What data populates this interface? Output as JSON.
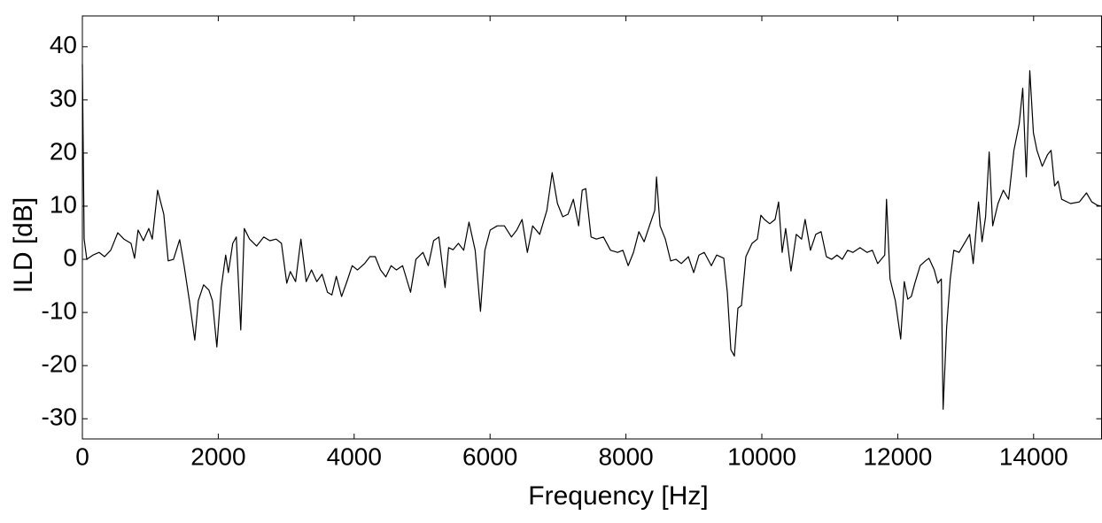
{
  "chart_data": {
    "type": "line",
    "xlabel": "Frequency [Hz]",
    "ylabel": "ILD [dB]",
    "color": "#000000",
    "xlim": [
      0,
      15000
    ],
    "xticks": [
      0,
      2000,
      4000,
      6000,
      8000,
      10000,
      12000,
      14000
    ],
    "ylim": [
      -33.8,
      45.8
    ],
    "yticks": [
      -30,
      -20,
      -10,
      0,
      10,
      20,
      30,
      40
    ],
    "grid": false,
    "x": [
      0,
      26,
      65,
      156,
      247,
      326,
      417,
      521,
      612,
      716,
      768,
      820,
      898,
      977,
      1029,
      1107,
      1198,
      1263,
      1341,
      1432,
      1497,
      1575,
      1654,
      1706,
      1784,
      1862,
      1914,
      1979,
      2044,
      2109,
      2148,
      2213,
      2265,
      2331,
      2383,
      2461,
      2565,
      2669,
      2760,
      2852,
      2930,
      3008,
      3060,
      3138,
      3216,
      3294,
      3372,
      3450,
      3528,
      3607,
      3672,
      3737,
      3815,
      3893,
      3971,
      4049,
      4153,
      4232,
      4310,
      4388,
      4466,
      4544,
      4622,
      4713,
      4830,
      4909,
      5013,
      5091,
      5169,
      5247,
      5338,
      5390,
      5455,
      5534,
      5612,
      5690,
      5781,
      5859,
      5924,
      6002,
      6106,
      6211,
      6315,
      6393,
      6471,
      6549,
      6627,
      6731,
      6836,
      6914,
      6992,
      7070,
      7148,
      7226,
      7304,
      7356,
      7408,
      7487,
      7565,
      7669,
      7773,
      7877,
      7955,
      8033,
      8111,
      8190,
      8268,
      8346,
      8424,
      8450,
      8502,
      8580,
      8658,
      8736,
      8815,
      8919,
      8997,
      9075,
      9153,
      9257,
      9335,
      9440,
      9492,
      9544,
      9596,
      9648,
      9700,
      9765,
      9856,
      9934,
      9986,
      10038,
      10117,
      10195,
      10247,
      10299,
      10351,
      10429,
      10507,
      10585,
      10637,
      10715,
      10794,
      10872,
      10950,
      11028,
      11106,
      11184,
      11262,
      11340,
      11445,
      11549,
      11627,
      11705,
      11809,
      11835,
      11887,
      11965,
      12044,
      12096,
      12148,
      12200,
      12252,
      12330,
      12408,
      12460,
      12538,
      12590,
      12642,
      12668,
      12720,
      12773,
      12825,
      12903,
      12981,
      13059,
      13111,
      13189,
      13241,
      13293,
      13346,
      13398,
      13476,
      13554,
      13632,
      13710,
      13788,
      13840,
      13892,
      13944,
      13997,
      14049,
      14127,
      14205,
      14257,
      14309,
      14361,
      14413,
      14543,
      14674,
      14778,
      14856,
      14934,
      14990
    ],
    "values": [
      36.7,
      3.8,
      0,
      0.8,
      1.3,
      0.5,
      1.7,
      5,
      3.8,
      3,
      0.2,
      5.5,
      3.5,
      5.8,
      3.8,
      13,
      8.5,
      -0.3,
      0,
      3.7,
      -1.2,
      -7.8,
      -15.2,
      -7.8,
      -4.8,
      -5.8,
      -7.8,
      -16.5,
      -5.3,
      0.8,
      -2.5,
      3,
      4.2,
      -13.3,
      5.8,
      3.8,
      2.5,
      4.2,
      3.5,
      3.8,
      3,
      -4.5,
      -2.3,
      -4.2,
      3.8,
      -4.2,
      -2,
      -4.2,
      -2.8,
      -6.2,
      -6.7,
      -3.2,
      -7,
      -4.2,
      -1.2,
      -2,
      -0.8,
      0.5,
      0.5,
      -2,
      -3.3,
      -1.2,
      -2,
      -1.2,
      -6.2,
      0,
      1.3,
      -1.2,
      3.5,
      4.2,
      -5.3,
      2.2,
      1.8,
      3,
      1.7,
      7,
      1.7,
      -9.8,
      1.7,
      5.5,
      6.3,
      6.3,
      4.2,
      5.5,
      7.5,
      1.3,
      6.3,
      4.7,
      9.2,
      16.3,
      10.5,
      8,
      8.5,
      11.3,
      6.3,
      13,
      13.3,
      4.2,
      3.8,
      4.2,
      1.7,
      1.3,
      1.7,
      -1.2,
      1.3,
      5.2,
      3.3,
      6.3,
      9.2,
      15.5,
      6.3,
      3.8,
      -0.3,
      0,
      -0.8,
      0.5,
      -2.5,
      0.8,
      1.3,
      -1.2,
      0.8,
      0.2,
      -6.2,
      -17,
      -18.2,
      -9.2,
      -8.7,
      0.5,
      3,
      3.8,
      8.3,
      7.5,
      6.7,
      7.5,
      10.8,
      1.3,
      5.8,
      -2.2,
      4.7,
      3.8,
      7.5,
      1.7,
      4.7,
      5.2,
      0.5,
      0,
      0.8,
      0,
      1.7,
      1.3,
      2.2,
      1.3,
      1.7,
      -0.8,
      0.8,
      11.3,
      -3.7,
      -7.8,
      -15,
      -4.2,
      -7.5,
      -7,
      -4.5,
      -1.2,
      -0.3,
      0.2,
      -2,
      -4.5,
      -3.7,
      -28.2,
      -12.8,
      -3.7,
      1.7,
      1.3,
      3,
      4.7,
      -0.8,
      10.8,
      3.3,
      8,
      20.2,
      6.3,
      10.5,
      13,
      11.3,
      20.5,
      25.5,
      32.2,
      15.5,
      35.5,
      23.8,
      20.5,
      17.5,
      19.7,
      20.5,
      13.8,
      14.7,
      11.3,
      10.5,
      10.8,
      12.5,
      10.8,
      10.2,
      10
    ]
  }
}
